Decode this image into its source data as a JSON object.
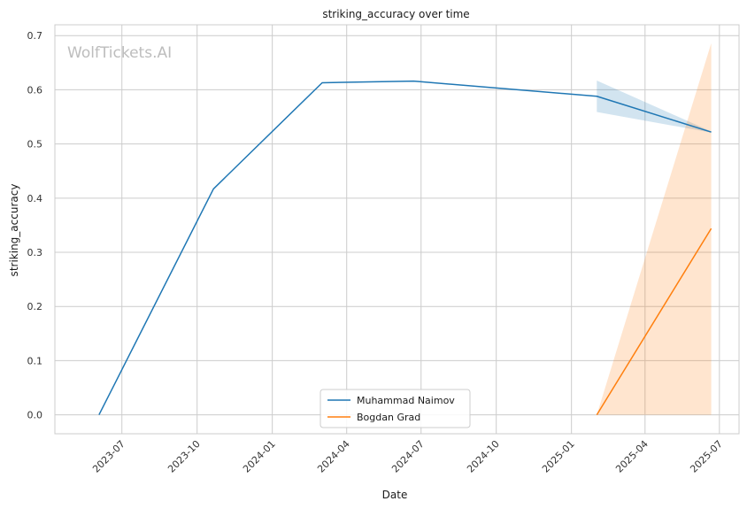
{
  "chart_data": {
    "type": "line",
    "title": "striking_accuracy over time",
    "xlabel": "Date",
    "ylabel": "striking_accuracy",
    "watermark": "WolfTickets.AI",
    "x_axis": "date",
    "xlim": [
      "2023-04-10",
      "2025-07-25"
    ],
    "ylim": [
      -0.035,
      0.72
    ],
    "x_ticks": [
      "2023-07-01",
      "2023-10-01",
      "2024-01-01",
      "2024-04-01",
      "2024-07-01",
      "2024-10-01",
      "2025-01-01",
      "2025-04-01",
      "2025-07-01"
    ],
    "x_tick_labels": [
      "2023-07",
      "2023-10",
      "2024-01",
      "2024-04",
      "2024-07",
      "2024-10",
      "2025-01",
      "2025-04",
      "2025-07"
    ],
    "y_ticks": [
      0.0,
      0.1,
      0.2,
      0.3,
      0.4,
      0.5,
      0.6,
      0.7
    ],
    "y_tick_labels": [
      "0.0",
      "0.1",
      "0.2",
      "0.3",
      "0.4",
      "0.5",
      "0.6",
      "0.7"
    ],
    "grid": true,
    "legend_position": "bottom-center",
    "series": [
      {
        "name": "Muhammad Naimov",
        "color": "#1f77b4",
        "x": [
          "2023-06-03",
          "2023-10-21",
          "2024-03-02",
          "2024-06-22",
          "2025-02-01",
          "2025-06-21"
        ],
        "y": [
          0.0,
          0.417,
          0.613,
          0.616,
          0.588,
          0.522
        ],
        "ci": {
          "x": [
            "2025-02-01",
            "2025-06-21"
          ],
          "lower": [
            0.559,
            0.521
          ],
          "upper": [
            0.617,
            0.523
          ]
        }
      },
      {
        "name": "Bogdan Grad",
        "color": "#ff7f0e",
        "x": [
          "2025-02-01",
          "2025-06-21"
        ],
        "y": [
          0.0,
          0.344
        ],
        "ci": {
          "x": [
            "2025-02-01",
            "2025-06-21"
          ],
          "lower": [
            0.0,
            0.0
          ],
          "upper": [
            0.0,
            0.686
          ]
        }
      }
    ]
  }
}
